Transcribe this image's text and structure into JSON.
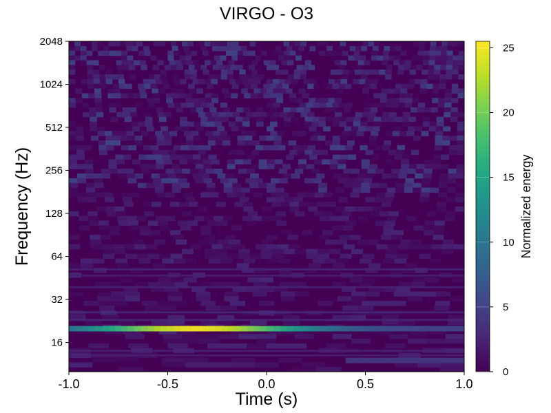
{
  "chart_data": {
    "type": "heatmap",
    "title": "VIRGO - O3",
    "xlabel": "Time (s)",
    "ylabel": "Frequency (Hz)",
    "xlim": [
      -1.0,
      1.0
    ],
    "ylim": [
      10,
      2048
    ],
    "yscale": "log2",
    "xticks": [
      -1.0,
      -0.5,
      0.0,
      0.5,
      1.0
    ],
    "xtick_labels": [
      "-1.0",
      "-0.5",
      "0.0",
      "0.5",
      "1.0"
    ],
    "yticks": [
      16,
      32,
      64,
      128,
      256,
      512,
      1024,
      2048
    ],
    "ytick_labels": [
      "16",
      "32",
      "64",
      "128",
      "256",
      "512",
      "1024",
      "2048"
    ],
    "colorbar": {
      "label": "Normalized energy",
      "range": [
        0,
        25.5
      ],
      "ticks": [
        0,
        5,
        10,
        15,
        20,
        25
      ],
      "tick_labels": [
        "0",
        "5",
        "10",
        "15",
        "20",
        "25"
      ],
      "colormap": "viridis"
    },
    "features": [
      {
        "name": "dominant line",
        "t_start": -1.0,
        "t_end": 1.0,
        "freq_hz": 20,
        "peak_energy": 25,
        "peak_t": -0.35
      },
      {
        "name": "low line",
        "t_start": 0.4,
        "t_end": 1.0,
        "freq_hz": 12,
        "peak_energy": 4
      }
    ],
    "grid": false
  }
}
